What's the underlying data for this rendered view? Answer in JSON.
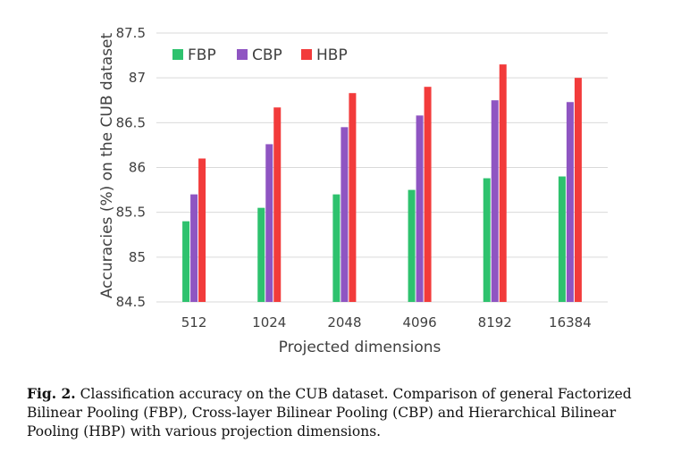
{
  "chart_data": {
    "type": "bar",
    "categories": [
      "512",
      "1024",
      "2048",
      "4096",
      "8192",
      "16384"
    ],
    "series": [
      {
        "name": "FBP",
        "color": "#2ec26e",
        "values": [
          85.4,
          85.55,
          85.7,
          85.75,
          85.88,
          85.9
        ]
      },
      {
        "name": "CBP",
        "color": "#8f55c2",
        "values": [
          85.7,
          86.26,
          86.45,
          86.58,
          86.75,
          86.73
        ]
      },
      {
        "name": "HBP",
        "color": "#f23b3b",
        "values": [
          86.1,
          86.67,
          86.83,
          86.9,
          87.15,
          87.0
        ]
      }
    ],
    "title": "",
    "xlabel": "Projected dimensions",
    "ylabel": "Accuracies (%) on the CUB dataset",
    "ylim": [
      84.5,
      87.5
    ],
    "yticks": [
      "84.5",
      "85",
      "85.5",
      "86",
      "86.5",
      "87",
      "87.5"
    ],
    "grid": true,
    "legend_position": "top-left"
  },
  "caption": {
    "label": "Fig. 2.",
    "text": " Classification accuracy on the CUB dataset. Comparison of general Factorized Bilinear Pooling (FBP), Cross-layer Bilinear Pooling (CBP) and Hierarchical Bilinear Pooling (HBP) with various projection dimensions."
  }
}
